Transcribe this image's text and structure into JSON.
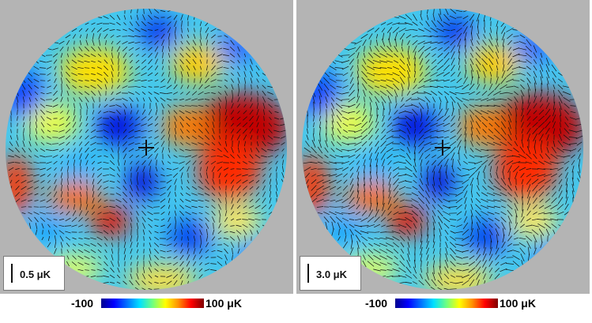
{
  "panels": [
    {
      "scale_label": "0.5 μK",
      "vector_length_factor": 1.0
    },
    {
      "scale_label": "3.0 μK",
      "vector_length_factor": 1.35
    }
  ],
  "colorbar": {
    "min_label": "-100",
    "max_label": "100 μK",
    "colors": [
      "#00008f",
      "#0000ff",
      "#0070ff",
      "#00e0ff",
      "#70ff80",
      "#ffff00",
      "#ff9000",
      "#ff0000",
      "#7f0000"
    ]
  },
  "colors": {
    "background": "#b4b4b4",
    "vectors": "#111111",
    "center_marker": "#111111"
  }
}
